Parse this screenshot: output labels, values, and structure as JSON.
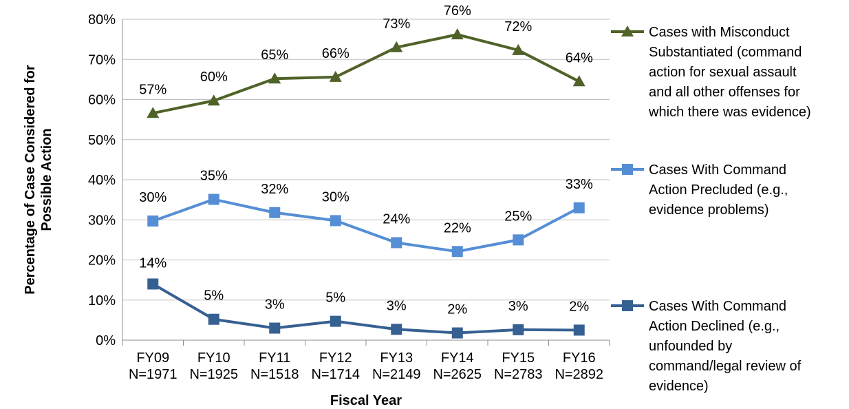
{
  "chart_data": {
    "type": "line",
    "title": "",
    "xlabel": "Fiscal Year",
    "ylabel_lines": [
      "Percentage of Case Considered for",
      "Possible Action"
    ],
    "categories": [
      [
        "FY09",
        "N=1971"
      ],
      [
        "FY10",
        "N=1925"
      ],
      [
        "FY11",
        "N=1518"
      ],
      [
        "FY12",
        "N=1714"
      ],
      [
        "FY13",
        "N=2149"
      ],
      [
        "FY14",
        "N=2625"
      ],
      [
        "FY15",
        "N=2783"
      ],
      [
        "FY16",
        "N=2892"
      ]
    ],
    "ylim": [
      0,
      80
    ],
    "yticks": [
      0,
      10,
      20,
      30,
      40,
      50,
      60,
      70,
      80
    ],
    "ytick_labels": [
      "0%",
      "10%",
      "20%",
      "30%",
      "40%",
      "50%",
      "60%",
      "70%",
      "80%"
    ],
    "grid": "horizontal",
    "legend_position": "right",
    "series": [
      {
        "key": "substantiated",
        "name_lines": [
          "Cases with Misconduct",
          "Substantiated (command",
          "action for sexual assault",
          "and all other offenses for",
          "which there was evidence)"
        ],
        "color": "#4f6228",
        "marker": "triangle",
        "values": [
          56.6,
          59.7,
          65.2,
          65.6,
          73.0,
          76.2,
          72.3,
          64.5
        ],
        "labels": [
          "57%",
          "60%",
          "65%",
          "66%",
          "73%",
          "76%",
          "72%",
          "64%"
        ]
      },
      {
        "key": "precluded",
        "name_lines": [
          "Cases With Command",
          "Action Precluded (e.g.,",
          "evidence problems)"
        ],
        "color": "#558ed5",
        "marker": "square",
        "values": [
          29.7,
          35.1,
          31.8,
          29.8,
          24.3,
          22.1,
          25.0,
          33.0
        ],
        "labels": [
          "30%",
          "35%",
          "32%",
          "30%",
          "24%",
          "22%",
          "25%",
          "33%"
        ]
      },
      {
        "key": "declined",
        "name_lines": [
          "Cases With Command",
          "Action Declined (e.g.,",
          "unfounded by",
          "command/legal review of",
          "evidence)"
        ],
        "color": "#376092",
        "marker": "square",
        "values": [
          14.0,
          5.2,
          3.0,
          4.7,
          2.7,
          1.8,
          2.6,
          2.5
        ],
        "labels": [
          "14%",
          "5%",
          "3%",
          "5%",
          "3%",
          "2%",
          "3%",
          "2%"
        ]
      }
    ]
  }
}
